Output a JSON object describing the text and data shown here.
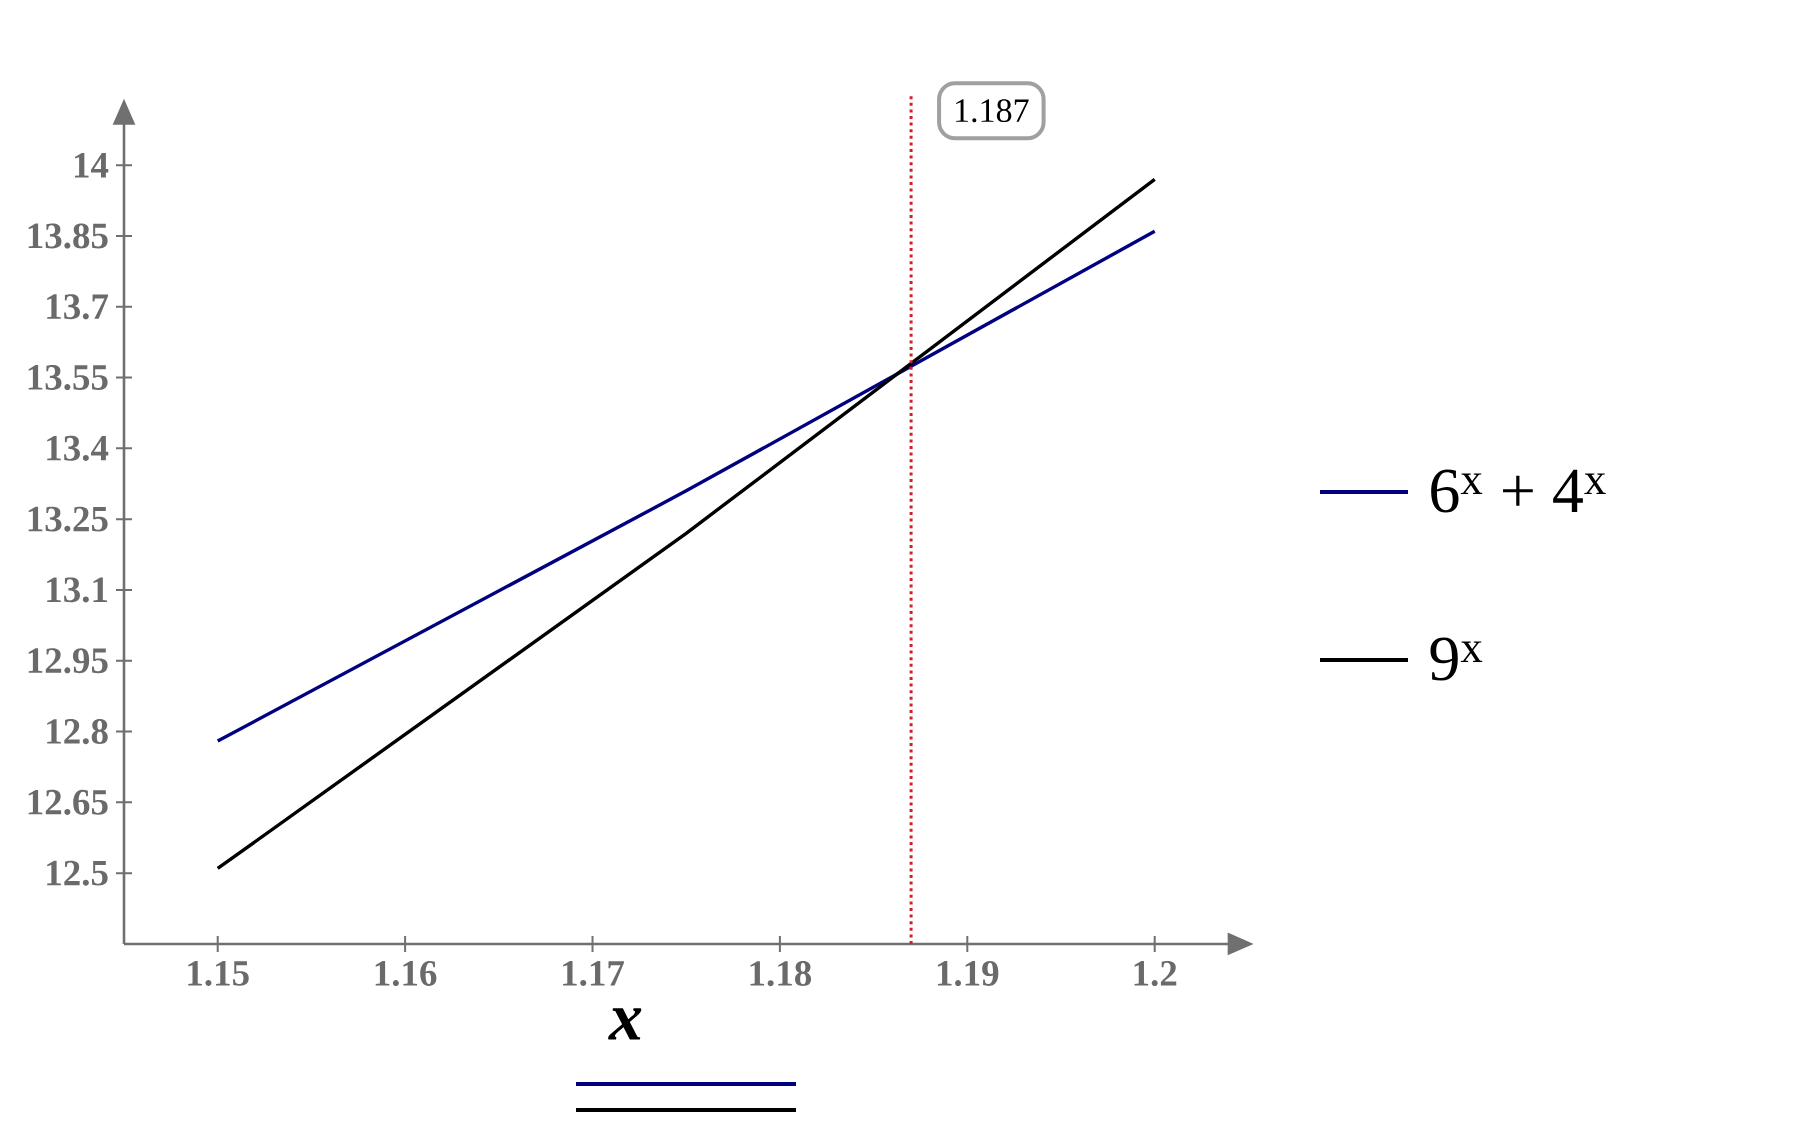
{
  "chart_data": {
    "type": "line",
    "xlabel": "x",
    "x": [
      1.15,
      1.175,
      1.2
    ],
    "series": [
      {
        "name": "6$^{x}$ + 4$^{x}$",
        "color": "#000080",
        "values": [
          12.78,
          13.31,
          13.86
        ]
      },
      {
        "name": "9$^{x}$",
        "color": "#000000",
        "values": [
          12.51,
          13.22,
          13.97
        ]
      }
    ],
    "xlim": [
      1.145,
      1.204
    ],
    "ylim": [
      12.35,
      14.09
    ],
    "xticks": [
      1.15,
      1.16,
      1.17,
      1.18,
      1.19,
      1.2
    ],
    "yticks": [
      12.5,
      12.65,
      12.8,
      12.95,
      13.1,
      13.25,
      13.4,
      13.55,
      13.7,
      13.85,
      14
    ],
    "ref_lines": [
      {
        "axis": "x",
        "value": 1.187,
        "label": "1.187",
        "color": "#d0202a",
        "line_style": "dotted"
      }
    ],
    "grid": false,
    "legend": "right",
    "marker": "none",
    "line_style": "solid"
  }
}
